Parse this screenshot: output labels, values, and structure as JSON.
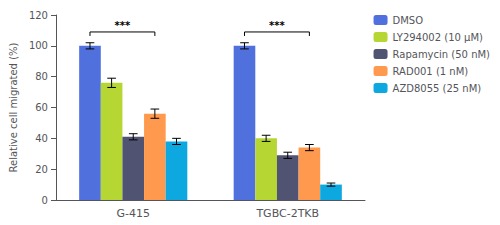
{
  "chart_data": {
    "type": "bar",
    "ylabel": "Relative cell migrated (%)",
    "categories": [
      "G-415",
      "TGBC-2TKB"
    ],
    "series": [
      {
        "name": "DMSO",
        "values": [
          100,
          100
        ],
        "errors": [
          2,
          2
        ]
      },
      {
        "name": "LY294002 (10 μM)",
        "values": [
          76,
          40
        ],
        "errors": [
          3,
          2
        ]
      },
      {
        "name": "Rapamycin (50 nM)",
        "values": [
          41,
          29
        ],
        "errors": [
          2,
          2
        ]
      },
      {
        "name": "RAD001 (1 nM)",
        "values": [
          56,
          34
        ],
        "errors": [
          3,
          2
        ]
      },
      {
        "name": "AZD8055 (25 nM)",
        "values": [
          38,
          10
        ],
        "errors": [
          2,
          1
        ]
      }
    ],
    "ylim": [
      0,
      120
    ],
    "yticks": [
      0,
      20,
      40,
      60,
      80,
      100,
      120
    ],
    "grid": false,
    "legend": "right",
    "annotations": [
      {
        "text": "***",
        "category": "G-415",
        "from": "DMSO",
        "to": "RAD001 (1 nM)",
        "y": 109
      },
      {
        "text": "***",
        "category": "TGBC-2TKB",
        "from": "DMSO",
        "to": "RAD001 (1 nM)",
        "y": 109
      }
    ]
  }
}
